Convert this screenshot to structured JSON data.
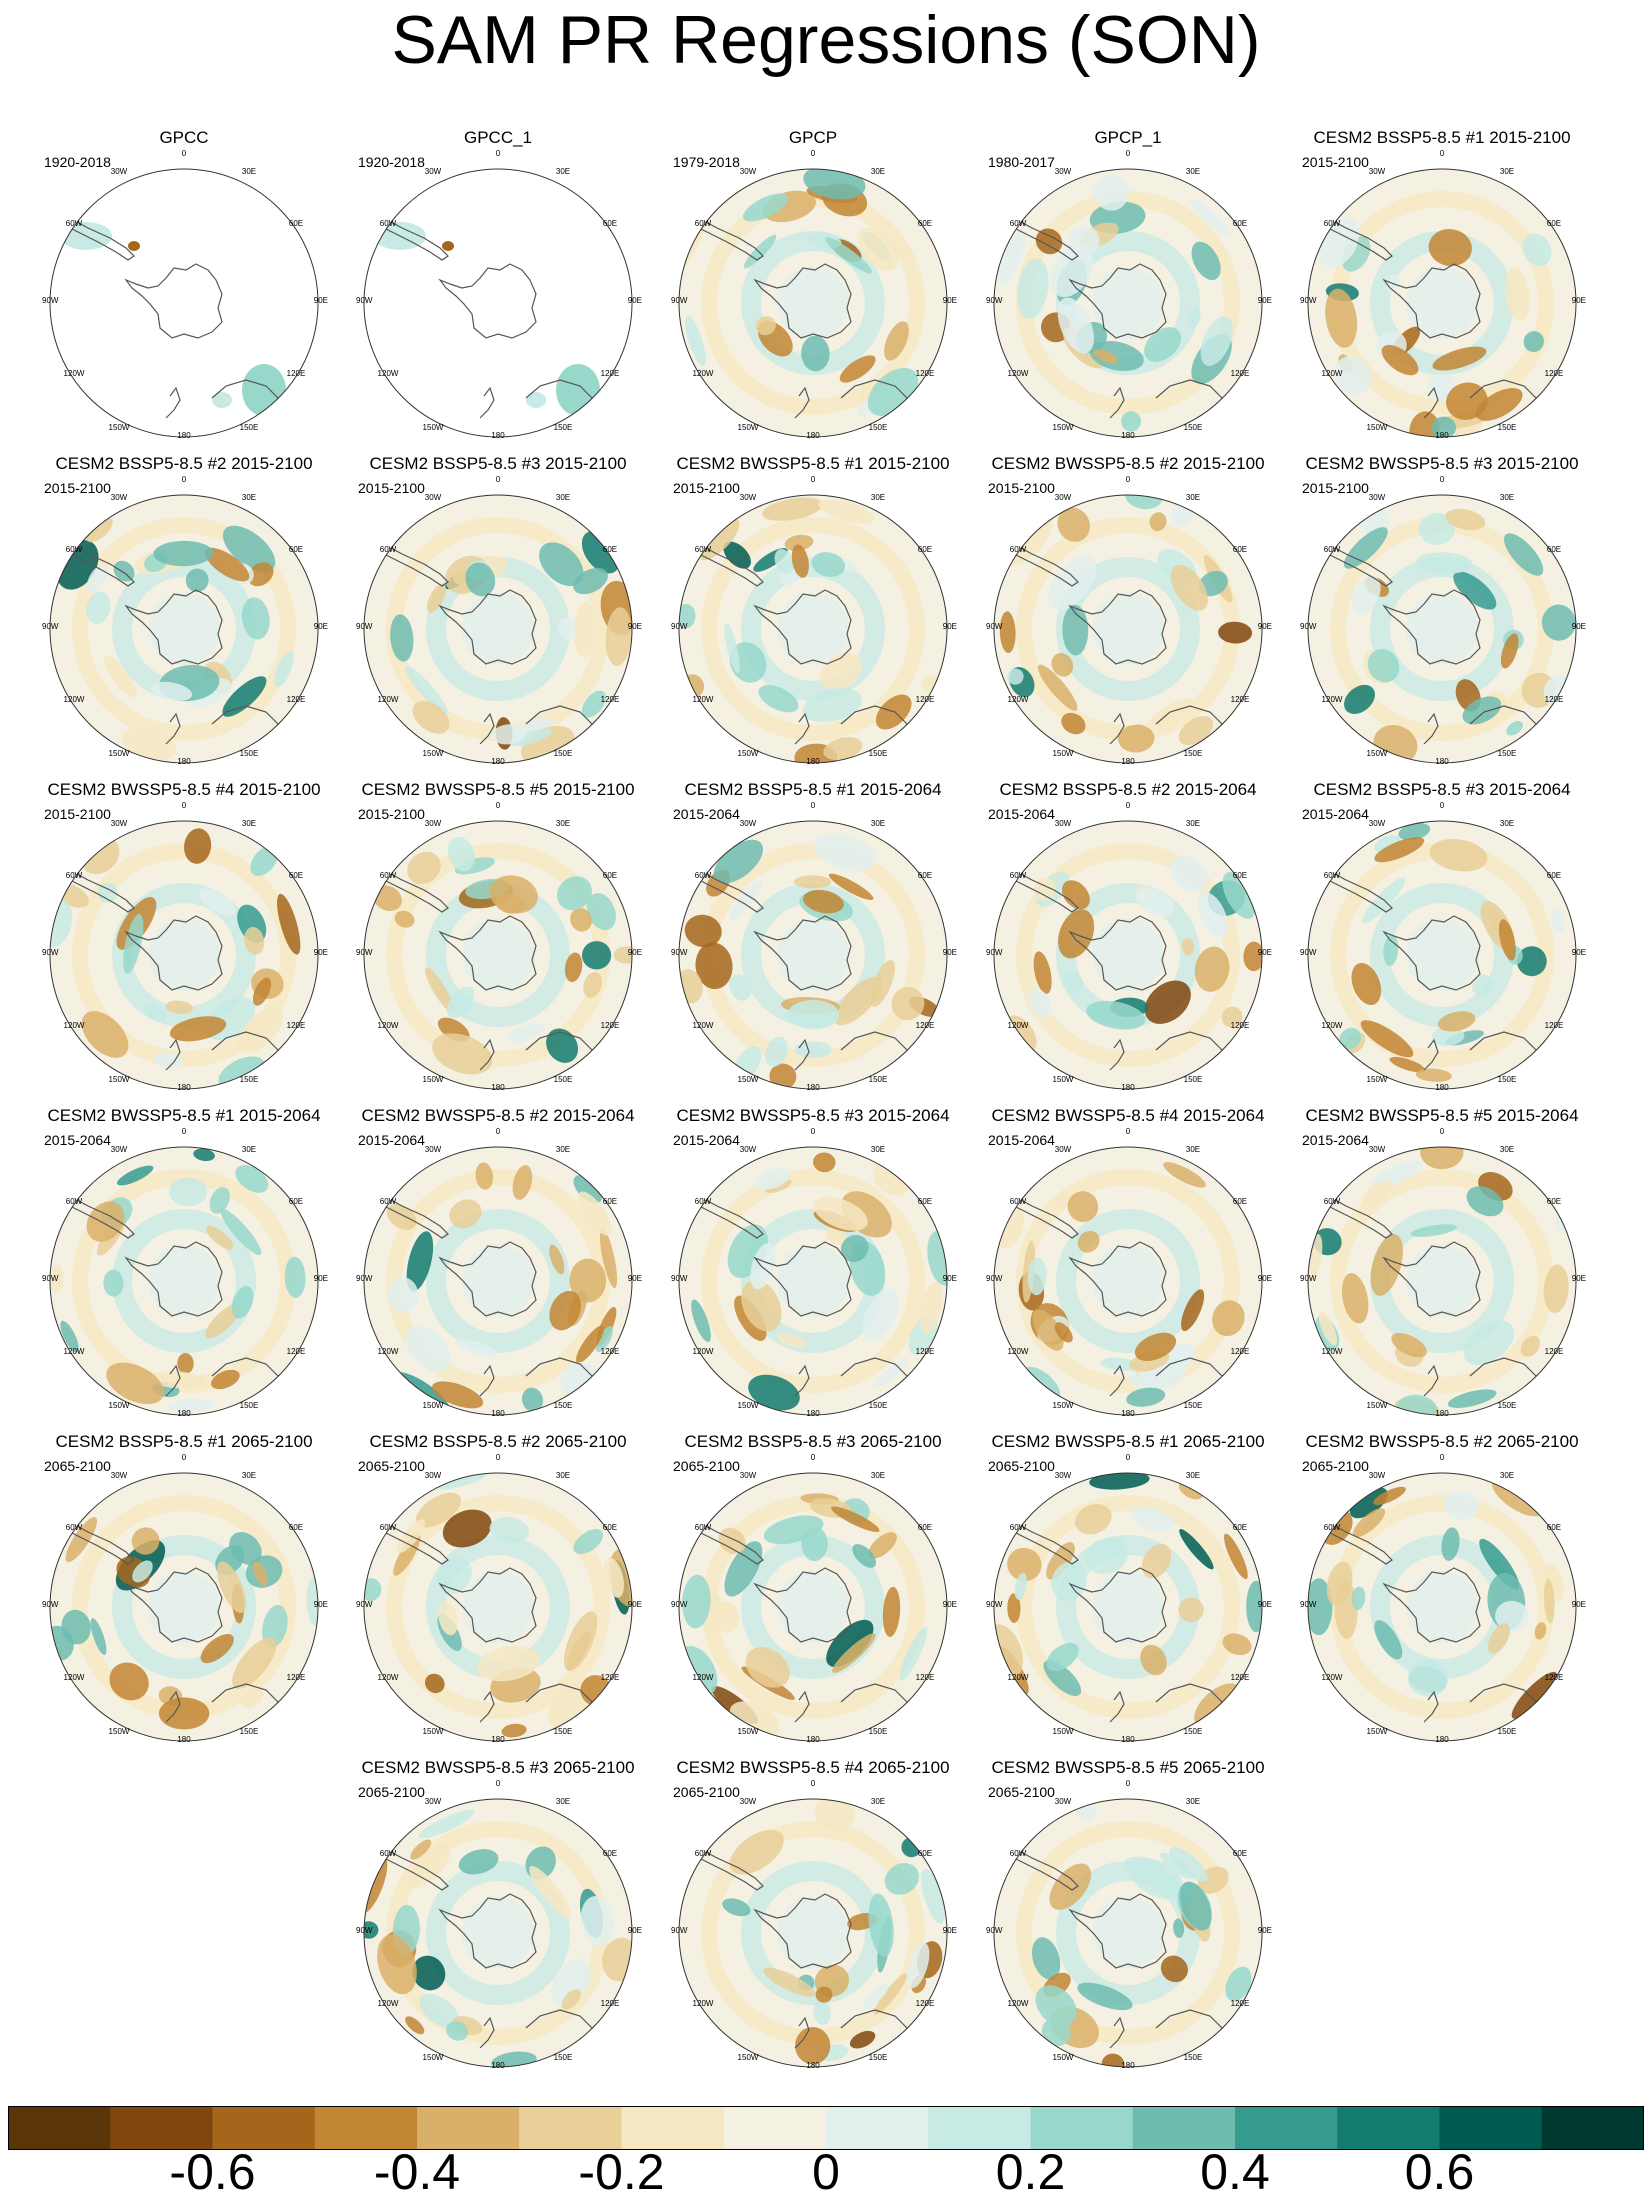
{
  "title": "SAM PR Regressions (SON)",
  "colorbar": {
    "colors": [
      "#5a3508",
      "#7f460d",
      "#a5661c",
      "#c28634",
      "#d9b06a",
      "#e9cf98",
      "#f6e8c3",
      "#f4f0e2",
      "#e2f0ee",
      "#c7eae4",
      "#98d8cb",
      "#6ebcb0",
      "#359b8f",
      "#137b70",
      "#005c52",
      "#00392f"
    ],
    "labels": [
      "-0.6",
      "-0.4",
      "-0.2",
      "0",
      "0.2",
      "0.4",
      "0.6"
    ]
  },
  "map_labels": {
    "top": "0",
    "ne": "30E",
    "e1": "60E",
    "e": "90E",
    "e2": "120E",
    "se": "150E",
    "bottom": "180",
    "sw": "150W",
    "w2": "120W",
    "w": "90W",
    "w1": "60W",
    "nw": "30W"
  },
  "panels": [
    {
      "title": "GPCC",
      "period": "1920-2018",
      "kind": "obs_sparse"
    },
    {
      "title": "GPCC_1",
      "period": "1920-2018",
      "kind": "obs_sparse"
    },
    {
      "title": "GPCP",
      "period": "1979-2018",
      "kind": "field"
    },
    {
      "title": "GPCP_1",
      "period": "1980-2017",
      "kind": "field"
    },
    {
      "title": "CESM2 BSSP5-8.5 #1 2015-2100",
      "period": "2015-2100",
      "kind": "field"
    },
    {
      "title": "CESM2 BSSP5-8.5 #2 2015-2100",
      "period": "2015-2100",
      "kind": "field"
    },
    {
      "title": "CESM2 BSSP5-8.5 #3 2015-2100",
      "period": "2015-2100",
      "kind": "field"
    },
    {
      "title": "CESM2 BWSSP5-8.5 #1 2015-2100",
      "period": "2015-2100",
      "kind": "field"
    },
    {
      "title": "CESM2 BWSSP5-8.5 #2 2015-2100",
      "period": "2015-2100",
      "kind": "field"
    },
    {
      "title": "CESM2 BWSSP5-8.5 #3 2015-2100",
      "period": "2015-2100",
      "kind": "field"
    },
    {
      "title": "CESM2 BWSSP5-8.5 #4 2015-2100",
      "period": "2015-2100",
      "kind": "field"
    },
    {
      "title": "CESM2 BWSSP5-8.5 #5 2015-2100",
      "period": "2015-2100",
      "kind": "field"
    },
    {
      "title": "CESM2 BSSP5-8.5 #1 2015-2064",
      "period": "2015-2064",
      "kind": "field"
    },
    {
      "title": "CESM2 BSSP5-8.5 #2 2015-2064",
      "period": "2015-2064",
      "kind": "field"
    },
    {
      "title": "CESM2 BSSP5-8.5 #3 2015-2064",
      "period": "2015-2064",
      "kind": "field"
    },
    {
      "title": "CESM2 BWSSP5-8.5 #1 2015-2064",
      "period": "2015-2064",
      "kind": "field"
    },
    {
      "title": "CESM2 BWSSP5-8.5 #2 2015-2064",
      "period": "2015-2064",
      "kind": "field"
    },
    {
      "title": "CESM2 BWSSP5-8.5 #3 2015-2064",
      "period": "2015-2064",
      "kind": "field"
    },
    {
      "title": "CESM2 BWSSP5-8.5 #4 2015-2064",
      "period": "2015-2064",
      "kind": "field"
    },
    {
      "title": "CESM2 BWSSP5-8.5 #5 2015-2064",
      "period": "2015-2064",
      "kind": "field"
    },
    {
      "title": "CESM2 BSSP5-8.5 #1 2065-2100",
      "period": "2065-2100",
      "kind": "field"
    },
    {
      "title": "CESM2 BSSP5-8.5 #2 2065-2100",
      "period": "2065-2100",
      "kind": "field"
    },
    {
      "title": "CESM2 BSSP5-8.5 #3 2065-2100",
      "period": "2065-2100",
      "kind": "field"
    },
    {
      "title": "CESM2 BWSSP5-8.5 #1 2065-2100",
      "period": "2065-2100",
      "kind": "field"
    },
    {
      "title": "CESM2 BWSSP5-8.5 #2 2065-2100",
      "period": "2065-2100",
      "kind": "field"
    },
    {
      "title": "CESM2 BWSSP5-8.5 #3 2065-2100",
      "period": "2065-2100",
      "kind": "field"
    },
    {
      "title": "CESM2 BWSSP5-8.5 #4 2065-2100",
      "period": "2065-2100",
      "kind": "field"
    },
    {
      "title": "CESM2 BWSSP5-8.5 #5 2065-2100",
      "period": "2065-2100",
      "kind": "field"
    }
  ]
}
